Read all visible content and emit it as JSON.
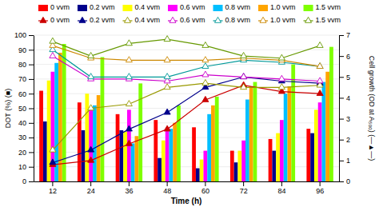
{
  "chart_data": {
    "type": "bar",
    "xlabel": "Time (h)",
    "ylabel": "DOT (%) (■)",
    "y2label": "Cell growth (OD at A₅₀₀) (—▲—)",
    "categories": [
      "12",
      "24",
      "36",
      "48",
      "60",
      "72",
      "84",
      "96"
    ],
    "series": [
      {
        "name": "0 vvm",
        "type": "bar",
        "color": "#ff0000",
        "values": [
          62,
          54,
          46,
          42,
          37,
          21,
          29,
          36
        ]
      },
      {
        "name": "0.2 vvm",
        "type": "bar",
        "color": "#00008b",
        "values": [
          41,
          35,
          35,
          16,
          9,
          13,
          21,
          33
        ]
      },
      {
        "name": "0.4 vvm",
        "type": "bar",
        "color": "#ffff00",
        "values": [
          69,
          60,
          34,
          28,
          15,
          21,
          33,
          49
        ]
      },
      {
        "name": "0.6 vvm",
        "type": "bar",
        "color": "#ff00ff",
        "values": [
          75,
          51,
          49,
          35,
          21,
          28,
          42,
          54
        ]
      },
      {
        "name": "0.8 vvm",
        "type": "bar",
        "color": "#00bfff",
        "values": [
          81,
          52,
          26,
          36,
          46,
          56,
          60,
          68
        ]
      },
      {
        "name": "1.0 vvm",
        "type": "bar",
        "color": "#ffa500",
        "values": [
          88,
          59,
          31,
          40,
          52,
          65,
          65,
          75
        ]
      },
      {
        "name": "1.5 vvm",
        "type": "bar",
        "color": "#7fff00",
        "values": [
          94,
          85,
          67,
          52,
          58,
          68,
          80,
          92
        ]
      },
      {
        "name": "0 vvm",
        "type": "line",
        "axis": "y2",
        "marker": "triangle",
        "color": "#cc0000",
        "values": [
          0.8,
          1.0,
          1.8,
          2.5,
          3.9,
          4.6,
          4.3,
          4.2
        ]
      },
      {
        "name": "0.2 vvm",
        "type": "line",
        "axis": "y2",
        "marker": "triangle",
        "color": "#00008b",
        "values": [
          0.9,
          1.5,
          2.5,
          3.3,
          4.5,
          5.0,
          4.8,
          4.7
        ]
      },
      {
        "name": "0.4 vvm",
        "type": "line",
        "axis": "y2",
        "marker": "triangle-open",
        "color": "#999900",
        "values": [
          1.5,
          3.5,
          3.7,
          4.5,
          4.7,
          4.5,
          4.5,
          4.6
        ]
      },
      {
        "name": "0.6 vvm",
        "type": "line",
        "axis": "y2",
        "marker": "triangle-open",
        "color": "#cc00cc",
        "values": [
          6.0,
          4.9,
          4.9,
          4.8,
          5.1,
          5.0,
          4.9,
          4.8
        ]
      },
      {
        "name": "0.8 vvm",
        "type": "line",
        "axis": "y2",
        "marker": "triangle-open",
        "color": "#009999",
        "values": [
          6.3,
          5.0,
          5.0,
          5.0,
          5.5,
          5.8,
          5.7,
          5.5
        ]
      },
      {
        "name": "1.0 vvm",
        "type": "line",
        "axis": "y2",
        "marker": "triangle-open",
        "color": "#cc8800",
        "values": [
          6.5,
          5.9,
          5.8,
          5.8,
          5.8,
          5.9,
          5.8,
          5.5
        ]
      },
      {
        "name": "1.5 vvm",
        "type": "line",
        "axis": "y2",
        "marker": "triangle-open",
        "color": "#669900",
        "values": [
          6.7,
          6.0,
          6.6,
          6.8,
          6.5,
          6.0,
          5.9,
          6.5
        ]
      }
    ],
    "ylim": [
      0,
      100
    ],
    "yticks": [
      0,
      10,
      20,
      30,
      40,
      50,
      60,
      70,
      80,
      90,
      100
    ],
    "y2lim": [
      0,
      7
    ],
    "y2ticks": [
      0,
      1,
      2,
      3,
      4,
      5,
      6,
      7
    ],
    "grid": true,
    "legend": "top"
  }
}
